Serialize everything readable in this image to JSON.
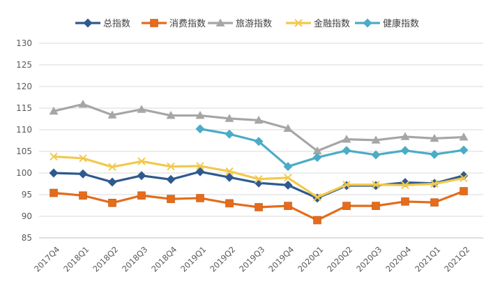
{
  "chart_data": {
    "type": "line",
    "title": "",
    "xlabel": "",
    "ylabel": "",
    "ylim": [
      85,
      130
    ],
    "yticks": [
      85,
      90,
      95,
      100,
      105,
      110,
      115,
      120,
      125,
      130
    ],
    "grid": "horizontal",
    "legend_position": "top",
    "categories": [
      "2017Q4",
      "2018Q1",
      "2018Q2",
      "2018Q3",
      "2018Q4",
      "2019Q1",
      "2019Q2",
      "2019Q3",
      "2019Q4",
      "2020Q1",
      "2020Q2",
      "2020Q3",
      "2020Q4",
      "2021Q1",
      "2021Q2"
    ],
    "series": [
      {
        "name": "总指数",
        "color": "#2E5A8E",
        "marker": "diamond",
        "values": [
          100.0,
          99.8,
          97.9,
          99.4,
          98.5,
          100.3,
          99.0,
          97.7,
          97.2,
          94.2,
          97.1,
          97.1,
          97.8,
          97.6,
          99.4
        ]
      },
      {
        "name": "消费指数",
        "color": "#E46C1C",
        "marker": "square",
        "values": [
          95.4,
          94.8,
          93.1,
          94.8,
          94.0,
          94.2,
          93.0,
          92.1,
          92.4,
          89.1,
          92.4,
          92.4,
          93.4,
          93.2,
          95.8
        ]
      },
      {
        "name": "旅游指数",
        "color": "#A6A6A6",
        "marker": "triangle",
        "values": [
          114.3,
          115.9,
          113.4,
          114.7,
          113.3,
          113.3,
          112.6,
          112.2,
          110.3,
          105.1,
          107.8,
          107.6,
          108.4,
          108.0,
          108.3
        ]
      },
      {
        "name": "金融指数",
        "color": "#F2C94C",
        "marker": "x",
        "values": [
          103.8,
          103.4,
          101.4,
          102.7,
          101.5,
          101.6,
          100.4,
          98.6,
          98.9,
          94.4,
          97.3,
          97.3,
          97.2,
          97.5,
          98.8
        ]
      },
      {
        "name": "健康指数",
        "color": "#4BACC6",
        "marker": "diamond",
        "values": [
          null,
          null,
          null,
          null,
          null,
          110.2,
          109.0,
          107.3,
          101.5,
          103.6,
          105.2,
          104.2,
          105.2,
          104.3,
          105.3
        ]
      }
    ]
  }
}
